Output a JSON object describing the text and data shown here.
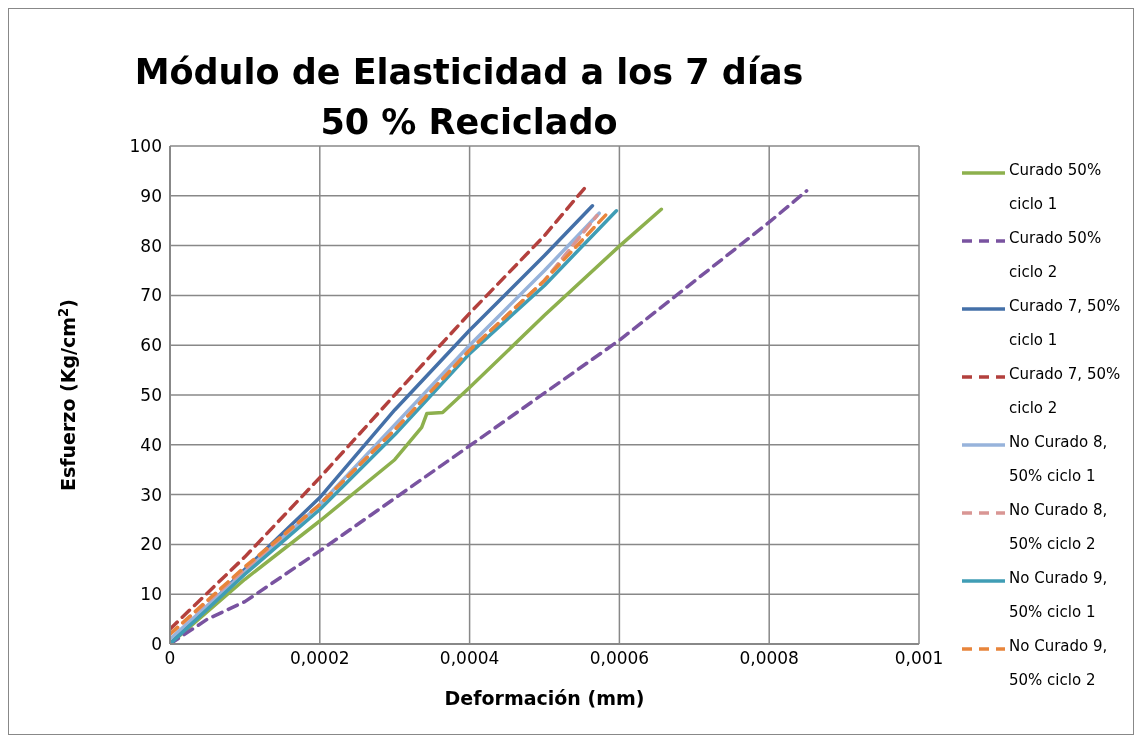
{
  "chart_data": {
    "type": "line",
    "title": "Módulo de Elasticidad a los 7 días",
    "subtitle": "50 % Reciclado",
    "xlabel": "Deformación (mm)",
    "ylabel": "Esfuerzo (Kg/cm$^{2}$)",
    "xlim": [
      0,
      0.001
    ],
    "xticks": [
      0,
      {
        "value": 0.0002,
        "label": "0,0002"
      },
      {
        "value": 0.0004,
        "label": "0,0004"
      },
      {
        "value": 0.0006,
        "label": "0,0006"
      },
      {
        "value": 0.0008,
        "label": "0,0008"
      },
      {
        "value": 0.001,
        "label": "0,001"
      }
    ],
    "ylim": [
      0,
      100
    ],
    "yticks": [
      0,
      10,
      20,
      30,
      40,
      50,
      60,
      70,
      80,
      90,
      100
    ],
    "grid": true,
    "legend": "right",
    "marker": "none",
    "series": [
      {
        "name": "Curado 50% ciclo 1",
        "color": "#8db04d",
        "line_style": "solid",
        "x": [
          0,
          0.0001,
          0.0002,
          0.0003,
          0.000336,
          0.000343,
          0.000364,
          0.0004,
          0.0005,
          0.0006,
          0.000656
        ],
        "values": [
          0,
          13,
          24.7,
          37,
          43.5,
          46.3,
          46.5,
          51.5,
          66,
          79.9,
          87.3
        ]
      },
      {
        "name": "Curado 50% ciclo 2",
        "color": "#7953a0",
        "line_style": "dashed",
        "x": [
          0,
          5e-05,
          0.0001,
          0.0002,
          0.0004,
          0.0006,
          0.0008,
          0.00085
        ],
        "values": [
          0,
          5,
          8.5,
          18.7,
          39.8,
          61,
          84.7,
          91
        ]
      },
      {
        "name": "Curado 7, 50% ciclo 1",
        "color": "#4470a8",
        "line_style": "solid",
        "x": [
          0,
          0.0001,
          0.0002,
          0.0003,
          0.0004,
          0.0005,
          0.000564
        ],
        "values": [
          0,
          15,
          29.4,
          47,
          63,
          78,
          88
        ]
      },
      {
        "name": "Curado 7, 50% ciclo 2",
        "color": "#b3403d",
        "line_style": "dashed",
        "x": [
          0,
          0.0001,
          0.0002,
          0.0003,
          0.0004,
          0.0005,
          0.000555
        ],
        "values": [
          3,
          17.5,
          33.4,
          50,
          66.4,
          82,
          91.8
        ]
      },
      {
        "name": "No Curado 8, 50% ciclo 1",
        "color": "#97b3db",
        "line_style": "solid",
        "x": [
          0,
          0.0001,
          0.0002,
          0.0003,
          0.0004,
          0.0005,
          0.000573
        ],
        "values": [
          1,
          14.5,
          28,
          44,
          60,
          75,
          86.5
        ]
      },
      {
        "name": "No Curado 8, 50% ciclo 2",
        "color": "#d99694",
        "line_style": "dashed",
        "x": [
          0,
          0.0001,
          0.0002,
          0.0003,
          0.0004,
          0.0005,
          0.00057
        ],
        "values": [
          2,
          15,
          28,
          43,
          59,
          73,
          86
        ]
      },
      {
        "name": "No Curado 9, 50% ciclo 1",
        "color": "#3f9db5",
        "line_style": "solid",
        "x": [
          0,
          0.0001,
          0.0002,
          0.0003,
          0.0004,
          0.0005,
          0.000596
        ],
        "values": [
          0,
          14,
          27,
          42,
          58.3,
          72,
          87
        ]
      },
      {
        "name": "No Curado 9, 50% ciclo 2",
        "color": "#e8853c",
        "line_style": "dashed",
        "x": [
          0,
          0.0001,
          0.0002,
          0.0003,
          0.0004,
          0.0005,
          0.000584
        ],
        "values": [
          2,
          15.5,
          28,
          43,
          59,
          73,
          86.5
        ]
      }
    ]
  }
}
